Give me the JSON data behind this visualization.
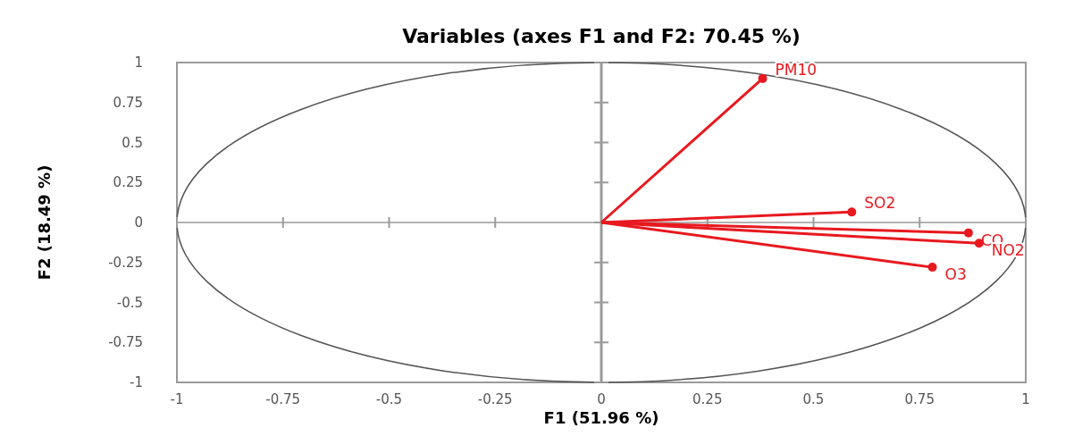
{
  "chart_data": {
    "type": "line",
    "title": "Variables (axes F1 and F2: 70.45 %)",
    "xlabel": "F1 (51.96 %)",
    "ylabel": "F2 (18.49 %)",
    "xlim": [
      -1,
      1
    ],
    "ylim": [
      -1,
      1
    ],
    "xticks": [
      -1,
      -0.75,
      -0.5,
      -0.25,
      0,
      0.25,
      0.5,
      0.75,
      1
    ],
    "yticks": [
      -1,
      -0.75,
      -0.5,
      -0.25,
      0,
      0.25,
      0.5,
      0.75,
      1
    ],
    "marker": "circle",
    "grid": false,
    "series": [
      {
        "name": "PM10",
        "color": "#e8191f",
        "x": [
          0,
          0.38
        ],
        "values": [
          0,
          0.9
        ]
      },
      {
        "name": "SO2",
        "color": "#e8191f",
        "x": [
          0,
          0.59
        ],
        "values": [
          0,
          0.065
        ]
      },
      {
        "name": "CO",
        "color": "#e8191f",
        "x": [
          0,
          0.865
        ],
        "values": [
          0,
          -0.065
        ]
      },
      {
        "name": "NO2",
        "color": "#e8191f",
        "x": [
          0,
          0.89
        ],
        "values": [
          0,
          -0.13
        ]
      },
      {
        "name": "O3",
        "color": "#e8191f",
        "x": [
          0,
          0.78
        ],
        "values": [
          0,
          -0.28
        ]
      }
    ]
  }
}
